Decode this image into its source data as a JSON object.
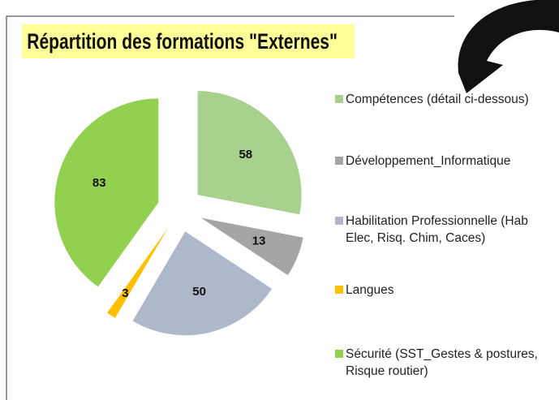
{
  "chart_data": {
    "type": "pie",
    "title": "Répartition des formations \"Externes\"",
    "categories": [
      "Compétences (détail ci-dessous)",
      "Développement_Informatique",
      "Habilitation Professionnelle (Hab Elec, Risq. Chim, Caces)",
      "Langues",
      "Sécurité (SST_Gestes & postures, Risque routier)"
    ],
    "values": [
      58,
      13,
      50,
      3,
      83
    ],
    "colors": [
      "#a9d18e",
      "#a5a5a5",
      "#adb9ca",
      "#ffc000",
      "#92d050"
    ],
    "legend": "right"
  }
}
